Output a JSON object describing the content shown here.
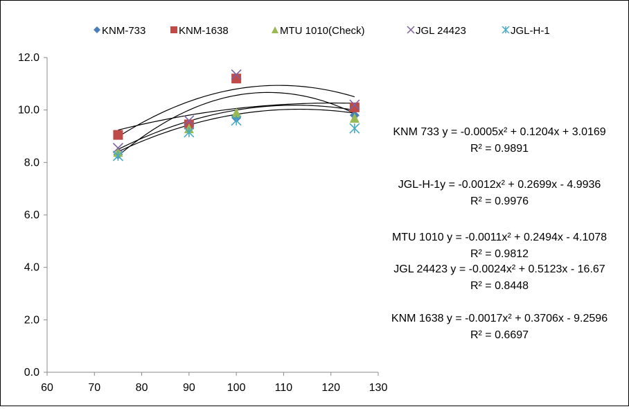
{
  "chart_data": {
    "type": "scatter",
    "xlim": [
      60,
      130
    ],
    "ylim": [
      0,
      12
    ],
    "x_ticks": [
      "60",
      "70",
      "80",
      "90",
      "100",
      "110",
      "120",
      "130"
    ],
    "y_ticks": [
      "0.0",
      "2.0",
      "4.0",
      "6.0",
      "8.0",
      "10.0",
      "12.0"
    ],
    "grid": false,
    "legend_position": "top",
    "trendline": "polynomial order 2",
    "series": [
      {
        "name": "KNM-733",
        "marker": "diamond",
        "color": "#4a7ebb",
        "x": [
          75,
          90,
          100,
          125
        ],
        "y": [
          8.3,
          9.3,
          9.7,
          9.8
        ],
        "fit": [
          -0.0005,
          0.1204,
          3.0169
        ]
      },
      {
        "name": "KNM-1638",
        "marker": "square",
        "color": "#be4b48",
        "x": [
          75,
          90,
          100,
          125
        ],
        "y": [
          9.05,
          9.45,
          11.2,
          10.1
        ],
        "fit": [
          -0.0017,
          0.3706,
          -9.2596
        ]
      },
      {
        "name": "MTU 1010(Check)",
        "marker": "triangle",
        "color": "#98b954",
        "x": [
          75,
          90,
          100,
          125
        ],
        "y": [
          8.4,
          9.3,
          9.9,
          9.7
        ],
        "fit": [
          -0.0011,
          0.2494,
          -4.1078
        ]
      },
      {
        "name": "JGL 24423",
        "marker": "x",
        "color": "#7d60a0",
        "x": [
          75,
          90,
          100,
          125
        ],
        "y": [
          8.55,
          9.6,
          11.35,
          10.2
        ],
        "fit": [
          -0.0024,
          0.5123,
          -16.67
        ]
      },
      {
        "name": "JGL-H-1",
        "marker": "asterisk",
        "color": "#46aac5",
        "x": [
          75,
          90,
          100,
          125
        ],
        "y": [
          8.25,
          9.15,
          9.6,
          9.3
        ],
        "fit": [
          -0.0012,
          0.2699,
          -4.9936
        ]
      }
    ],
    "annotations": [
      {
        "eq": "KNM 733 y = -0.0005x² + 0.1204x + 3.0169",
        "r2": "R² = 0.9891"
      },
      {
        "eq": "JGL-H-1y = -0.0012x² + 0.2699x - 4.9936",
        "r2": "R² = 0.9976"
      },
      {
        "eq": "MTU 1010 y = -0.0011x² + 0.2494x - 4.1078",
        "r2": "R² = 0.9812"
      },
      {
        "eq": "JGL 24423 y = -0.0024x² + 0.5123x - 16.67",
        "r2": "R² = 0.8448"
      },
      {
        "eq": "KNM 1638 y = -0.0017x² + 0.3706x - 9.2596",
        "r2": "R² = 0.6697"
      }
    ]
  }
}
